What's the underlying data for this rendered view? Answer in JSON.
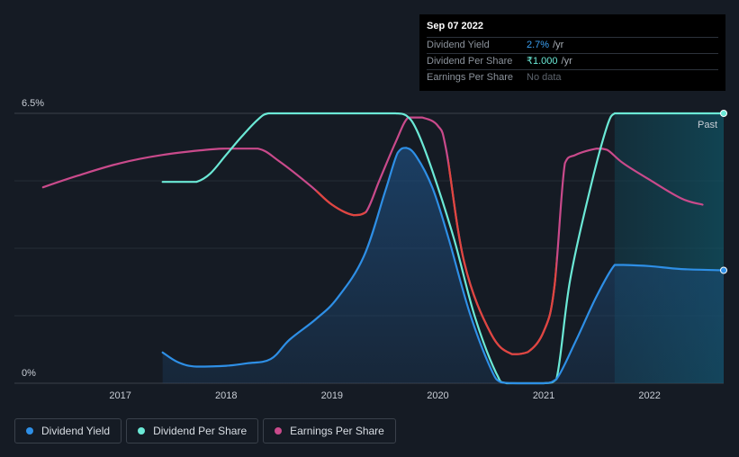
{
  "tooltip": {
    "date": "Sep 07 2022",
    "rows": [
      {
        "label": "Dividend Yield",
        "value": "2.7%",
        "unit": "/yr"
      },
      {
        "label": "Dividend Per Share",
        "value": "₹1.000",
        "unit": "/yr"
      },
      {
        "label": "Earnings Per Share",
        "value": "No data",
        "unit": ""
      }
    ]
  },
  "legend": [
    {
      "label": "Dividend Yield",
      "color": "#2e8fe6"
    },
    {
      "label": "Dividend Per Share",
      "color": "#6be9d6"
    },
    {
      "label": "Earnings Per Share",
      "color": "#c94a8b"
    }
  ],
  "chart_data": {
    "type": "line",
    "y_top_label": "6.5%",
    "y_bottom_label": "0%",
    "past_label": "Past",
    "ylim": [
      0,
      6.5
    ],
    "xlim": [
      2016.0,
      2022.7
    ],
    "x_ticks": [
      "2017",
      "2018",
      "2019",
      "2020",
      "2021",
      "2022"
    ],
    "series": [
      {
        "name": "Dividend Yield",
        "color": "#2e8fe6",
        "fill": true,
        "x": [
          2017.4,
          2017.55,
          2017.72,
          2018.0,
          2018.2,
          2018.42,
          2018.6,
          2018.85,
          2019.05,
          2019.3,
          2019.5,
          2019.62,
          2019.7,
          2019.8,
          2019.95,
          2020.1,
          2020.3,
          2020.5,
          2020.6,
          2020.75,
          2021.0,
          2021.12,
          2021.3,
          2021.5,
          2021.67,
          2021.75,
          2022.0,
          2022.3,
          2022.7
        ],
        "y": [
          0.74,
          0.5,
          0.4,
          0.42,
          0.48,
          0.58,
          1.05,
          1.55,
          2.05,
          3.05,
          4.6,
          5.55,
          5.67,
          5.45,
          4.7,
          3.5,
          1.7,
          0.35,
          0.02,
          0.0,
          0.0,
          0.1,
          1.0,
          2.1,
          2.85,
          2.85,
          2.82,
          2.75,
          2.72
        ]
      },
      {
        "name": "Dividend Per Share",
        "color": "#6be9d6",
        "fill": false,
        "x": [
          2017.4,
          2017.6,
          2017.72,
          2017.85,
          2018.0,
          2018.15,
          2018.3,
          2018.4,
          2018.6,
          2019.0,
          2019.4,
          2019.6,
          2019.7,
          2019.8,
          2019.95,
          2020.15,
          2020.35,
          2020.55,
          2020.65,
          2021.0,
          2021.12,
          2021.25,
          2021.45,
          2021.6,
          2021.67,
          2021.75,
          2022.0,
          2022.7
        ],
        "y": [
          4.85,
          4.85,
          4.85,
          5.05,
          5.5,
          5.95,
          6.35,
          6.5,
          6.5,
          6.5,
          6.5,
          6.5,
          6.45,
          6.1,
          5.1,
          3.5,
          1.6,
          0.25,
          0.0,
          0.0,
          0.1,
          2.5,
          4.8,
          6.2,
          6.5,
          6.5,
          6.5,
          6.5
        ]
      },
      {
        "name": "Earnings Per Share",
        "color": "#c94a8b",
        "fill": false,
        "x": [
          2016.27,
          2016.6,
          2017.0,
          2017.4,
          2017.8,
          2018.0,
          2018.3,
          2018.5,
          2018.8,
          2019.0,
          2019.2,
          2019.32,
          2019.45,
          2019.6,
          2019.72,
          2019.85,
          2020.0,
          2020.08,
          2020.25,
          2020.5,
          2020.7,
          2020.85,
          2021.0,
          2021.1,
          2021.2,
          2021.3,
          2021.5,
          2021.6,
          2021.75,
          2022.0,
          2022.3,
          2022.5
        ],
        "y": [
          4.72,
          5.0,
          5.3,
          5.5,
          5.62,
          5.65,
          5.65,
          5.35,
          4.75,
          4.3,
          4.05,
          4.12,
          4.9,
          5.8,
          6.4,
          6.4,
          6.2,
          5.6,
          2.9,
          1.2,
          0.7,
          0.75,
          1.25,
          2.3,
          5.3,
          5.5,
          5.65,
          5.62,
          5.3,
          4.9,
          4.45,
          4.3
        ]
      }
    ]
  }
}
